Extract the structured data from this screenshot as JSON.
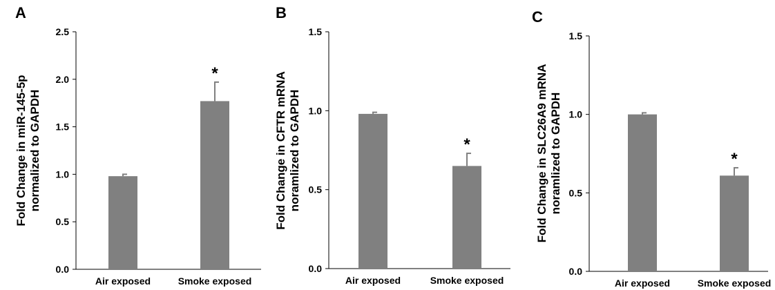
{
  "colors": {
    "bar": "#808080",
    "error_bar": "#808080",
    "axis": "#000000"
  },
  "chart_data": [
    {
      "type": "bar",
      "panel": "A",
      "ylabel": [
        "Fold Change in miR-145-5p",
        "normalized to GAPDH"
      ],
      "categories": [
        "Air exposed",
        "Smoke exposed"
      ],
      "values": [
        0.98,
        1.77
      ],
      "errors": [
        0.02,
        0.2
      ],
      "significance": [
        "",
        "*"
      ],
      "ylim": [
        0,
        2.5
      ],
      "yticks": [
        "0.0",
        "0.5",
        "1.0",
        "1.5",
        "2.0",
        "2.5"
      ]
    },
    {
      "type": "bar",
      "panel": "B",
      "ylabel": [
        "Fold Change in CFTR mRNA",
        "noramlized to GAPDH"
      ],
      "categories": [
        "Air exposed",
        "Smoke exposed"
      ],
      "values": [
        0.98,
        0.65
      ],
      "errors": [
        0.01,
        0.08
      ],
      "significance": [
        "",
        "*"
      ],
      "ylim": [
        0,
        1.5
      ],
      "yticks": [
        "0.0",
        "0.5",
        "1.0",
        "1.5"
      ]
    },
    {
      "type": "bar",
      "panel": "C",
      "ylabel": [
        "Fold Change in SLC26A9 mRNA",
        "noramlized to GAPDH"
      ],
      "categories": [
        "Air exposed",
        "Smoke exposed"
      ],
      "values": [
        1.0,
        0.61
      ],
      "errors": [
        0.01,
        0.05
      ],
      "significance": [
        "",
        "*"
      ],
      "ylim": [
        0,
        1.5
      ],
      "yticks": [
        "0.0",
        "0.5",
        "1.0",
        "1.5"
      ]
    }
  ]
}
